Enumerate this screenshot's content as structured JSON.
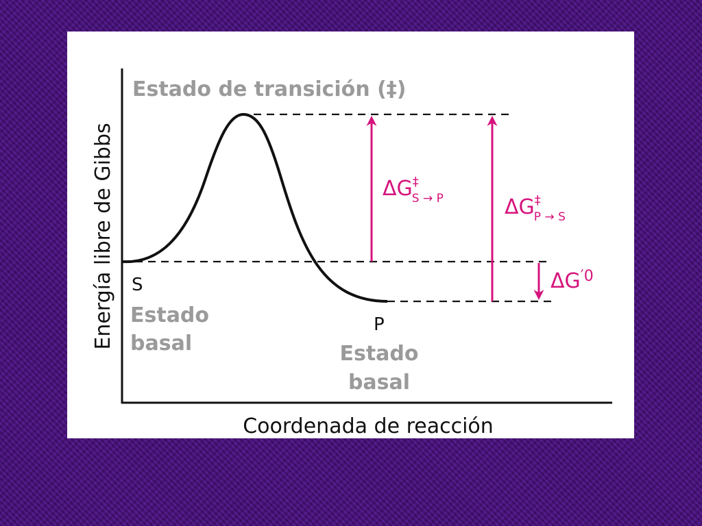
{
  "diagram": {
    "transition_state": "Estado de transición (‡)",
    "y_axis_label": "Energía libre de Gibbs",
    "x_axis_label": "Coordenada de reacción",
    "substrate": {
      "symbol": "S",
      "state": [
        "Estado",
        "basal"
      ]
    },
    "product": {
      "symbol": "P",
      "state": [
        "Estado",
        "basal"
      ]
    },
    "dg_forward": {
      "symbol": "ΔG",
      "superscript": "‡",
      "subscript": "S → P"
    },
    "dg_reverse": {
      "symbol": "ΔG",
      "superscript": "‡",
      "subscript": "P → S"
    },
    "dg_standard": {
      "symbol": "ΔG",
      "superscript": "′0"
    }
  }
}
